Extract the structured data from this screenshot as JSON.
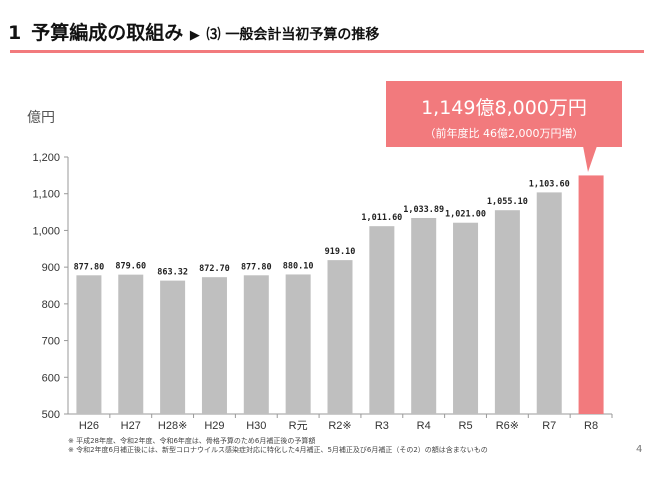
{
  "header": {
    "section_number": "1",
    "title": "予算編成の取組み",
    "arrow": "▶",
    "subtitle": "⑶ 一般会計当初予算の推移"
  },
  "callout": {
    "main": "1,149億8,000万円",
    "sub": "（前年度比  46億2,000万円増）"
  },
  "notes": [
    "※  平成28年度、令和2年度、令和6年度は、骨格予算のため6月補正後の予算額",
    "※  令和2年度6月補正後には、新型コロナウイルス感染症対応に特化した4月補正、5月補正及び6月補正（その2）の額は含まないもの"
  ],
  "page_number": "4",
  "colors": {
    "bar": "#bfbfbf",
    "highlight": "#f27a7d",
    "accent": "#f27a7d"
  },
  "chart_data": {
    "type": "bar",
    "ylabel": "億円",
    "ylim": [
      500,
      1200
    ],
    "yticks": [
      500,
      600,
      700,
      800,
      900,
      1000,
      1100,
      1200
    ],
    "ytick_labels": [
      "500",
      "600",
      "700",
      "800",
      "900",
      "1,000",
      "1,100",
      "1,200"
    ],
    "categories": [
      "H26",
      "H27",
      "H28※",
      "H29",
      "H30",
      "R元",
      "R2※",
      "R3",
      "R4",
      "R5",
      "R6※",
      "R7",
      "R8"
    ],
    "values": [
      877.8,
      879.6,
      863.32,
      872.7,
      877.8,
      880.1,
      919.1,
      1011.6,
      1033.89,
      1021.0,
      1055.1,
      1103.6,
      1149.8
    ],
    "data_labels": [
      "877.80",
      "879.60",
      "863.32",
      "872.70",
      "877.80",
      "880.10",
      "919.10",
      "1,011.60",
      "1,033.89",
      "1,021.00",
      "1,055.10",
      "1,103.60",
      ""
    ],
    "highlight_index": 12,
    "grid": false
  }
}
